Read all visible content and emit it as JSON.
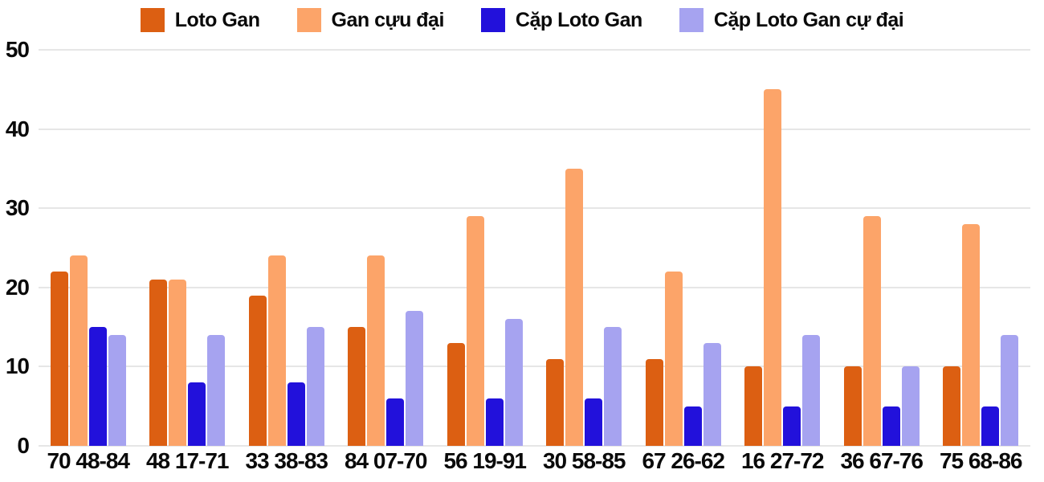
{
  "chart_data": {
    "type": "bar",
    "title": "",
    "xlabel": "",
    "ylabel": "",
    "ylim": [
      0,
      50
    ],
    "yticks": [
      0,
      10,
      20,
      30,
      40,
      50
    ],
    "grid": true,
    "legend_position": "top",
    "categories": [
      "70 48-84",
      "48 17-71",
      "33 38-83",
      "84 07-70",
      "56 19-91",
      "30 58-85",
      "67 26-62",
      "16 27-72",
      "36 67-76",
      "75 68-86"
    ],
    "series": [
      {
        "name": "Loto Gan",
        "color": "#DC5F12",
        "values": [
          22,
          21,
          19,
          15,
          13,
          11,
          11,
          10,
          10,
          10
        ]
      },
      {
        "name": "Gan cựu đại",
        "color": "#FCA469",
        "values": [
          24,
          21,
          24,
          24,
          29,
          35,
          22,
          45,
          29,
          28
        ]
      },
      {
        "name": "Cặp Loto Gan",
        "color": "#2211DB",
        "values": [
          15,
          8,
          8,
          6,
          6,
          6,
          5,
          5,
          5,
          5
        ]
      },
      {
        "name": "Cặp Loto Gan cự đại",
        "color": "#A6A3F0",
        "values": [
          14,
          14,
          15,
          17,
          16,
          15,
          13,
          14,
          10,
          14
        ]
      }
    ]
  },
  "colors": {
    "grid": "#e6e6e6",
    "text": "#0a0a0a",
    "background": "#ffffff"
  }
}
